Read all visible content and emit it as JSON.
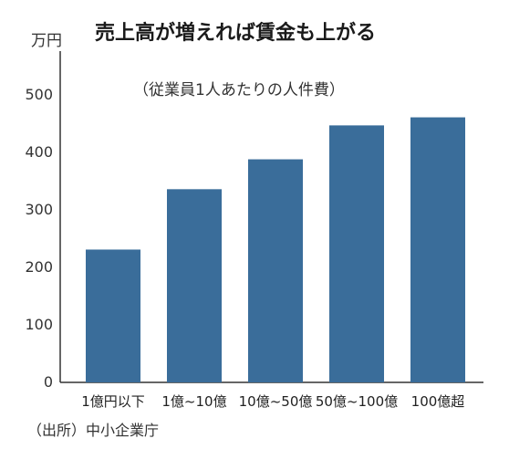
{
  "chart_data": {
    "type": "bar",
    "title": "売上高が増えれば賃金も上がる",
    "subtitle": "（従業員1人あたりの人件費）",
    "unit_label": "万円",
    "source": "（出所）中小企業庁",
    "categories": [
      "1億円以下",
      "1億~10億",
      "10億~50億",
      "50億~100億",
      "100億超"
    ],
    "values": [
      231,
      336,
      388,
      447,
      461
    ],
    "ylim": [
      0,
      500
    ],
    "yticks": [
      0,
      100,
      200,
      300,
      400,
      500
    ],
    "bar_color": "#3a6d9a",
    "axis_color": "#333333",
    "grid": false
  }
}
